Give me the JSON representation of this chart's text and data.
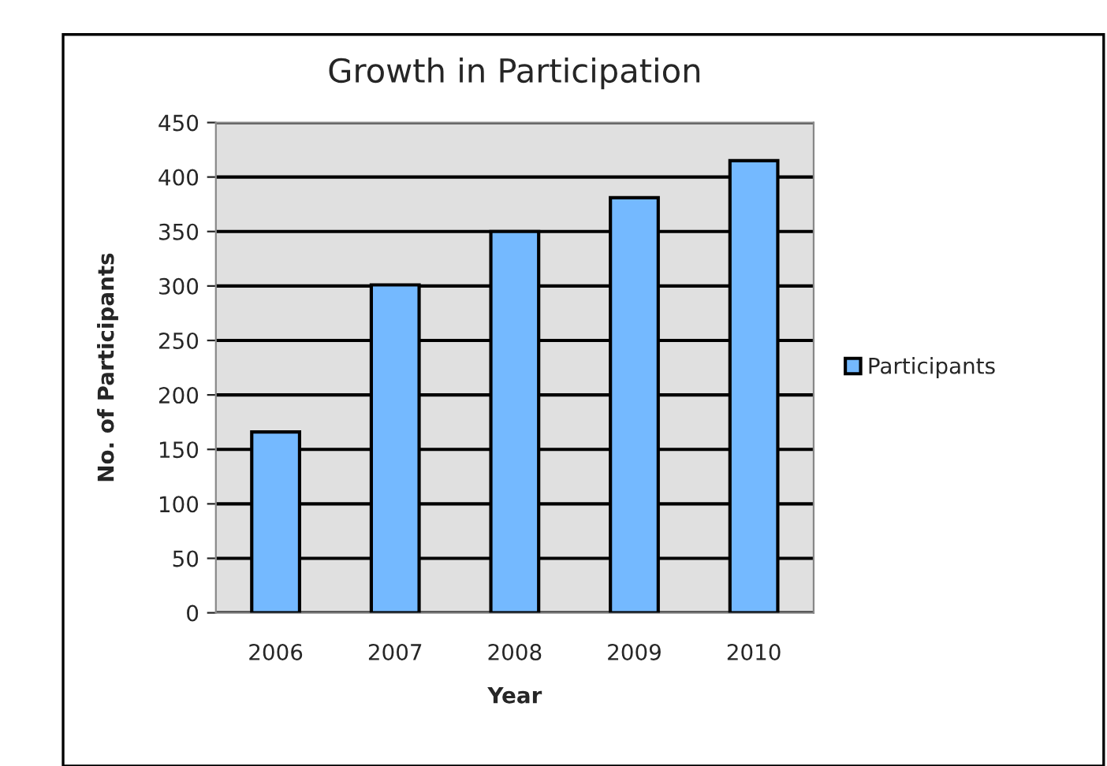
{
  "chart_data": {
    "type": "bar",
    "title": "Growth in Participation",
    "xlabel": "Year",
    "ylabel": "No. of Participants",
    "categories": [
      "2006",
      "2007",
      "2008",
      "2009",
      "2010"
    ],
    "series": [
      {
        "name": "Participants",
        "color": "#74b9ff",
        "values": [
          166,
          301,
          350,
          381,
          415
        ]
      }
    ],
    "ylim": [
      0,
      450
    ],
    "yticks": [
      0,
      50,
      100,
      150,
      200,
      250,
      300,
      350,
      400,
      450
    ],
    "grid": "y",
    "legend": "right"
  }
}
